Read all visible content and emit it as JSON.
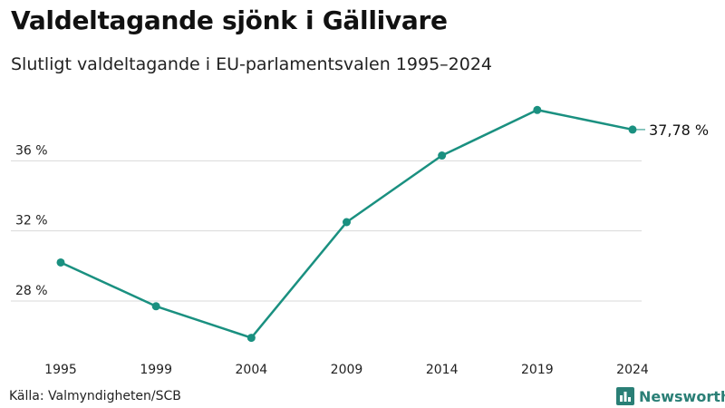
{
  "header": {
    "title": "Valdeltagande sjönk i Gällivare",
    "subtitle": "Slutligt valdeltagande i EU-parlamentsvalen 1995–2024"
  },
  "footer": {
    "source": "Källa: Valmyndigheten/SCB",
    "brand": "Newsworthy",
    "brand_icon": "bar-chart-icon"
  },
  "colors": {
    "line": "#1a9080",
    "grid": "#d9d9d9",
    "brand": "#2a7f76"
  },
  "chart_data": {
    "type": "line",
    "title": "Valdeltagande sjönk i Gällivare",
    "subtitle": "Slutligt valdeltagande i EU-parlamentsvalen 1995–2024",
    "categories": [
      "1995",
      "1999",
      "2004",
      "2009",
      "2014",
      "2019",
      "2024"
    ],
    "series": [
      {
        "values": [
          30.2,
          27.7,
          25.9,
          32.5,
          36.3,
          38.9,
          37.78
        ]
      }
    ],
    "end_label": "37,78 %",
    "y_ticks": [
      {
        "value": 28,
        "label": "28 %"
      },
      {
        "value": 32,
        "label": "32 %"
      },
      {
        "value": 36,
        "label": "36 %"
      }
    ],
    "ylim": [
      25.0,
      40.0
    ],
    "grid": true,
    "legend": "none"
  }
}
